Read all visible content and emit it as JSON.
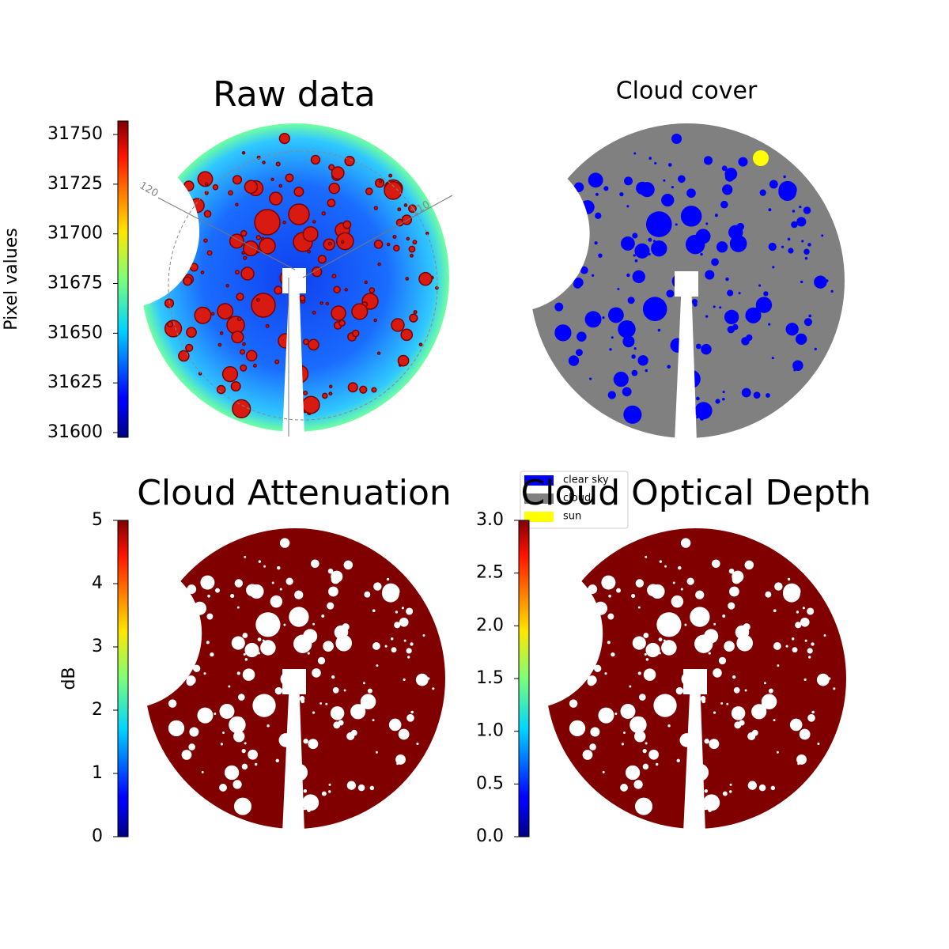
{
  "chart_data": [
    {
      "type": "image",
      "title": "Raw data",
      "colorbar": {
        "label": "Pixel values",
        "colormap": "jet",
        "ylim": [
          31597.6,
          31756.8
        ],
        "yticks": [
          31600,
          31625,
          31650,
          31675,
          31700,
          31725,
          31750
        ]
      },
      "annotations": [
        "120",
        "110"
      ]
    },
    {
      "type": "image",
      "title": "Cloud cover",
      "legend": [
        {
          "name": "clear sky",
          "color": "#0000ff"
        },
        {
          "name": "cloud",
          "color": "#808080"
        },
        {
          "name": "sun",
          "color": "#ffff00"
        }
      ]
    },
    {
      "type": "image",
      "title": "Cloud Attenuation",
      "colorbar": {
        "label": "dB",
        "colormap": "jet",
        "ylim": [
          0,
          5
        ],
        "yticks": [
          0,
          1,
          2,
          3,
          4,
          5
        ]
      }
    },
    {
      "type": "image",
      "title": "Cloud Optical Depth",
      "colorbar": {
        "colormap": "jet",
        "ylim": [
          0,
          3
        ],
        "yticks": [
          {
            "value": 0,
            "label": "0.0"
          },
          {
            "value": 0.5,
            "label": "0.5"
          },
          {
            "value": 1,
            "label": "1.0"
          },
          {
            "value": 1.5,
            "label": "1.5"
          },
          {
            "value": 2,
            "label": "2.0"
          },
          {
            "value": 2.5,
            "label": "2.5"
          },
          {
            "value": 3,
            "label": "3.0"
          }
        ]
      }
    }
  ]
}
